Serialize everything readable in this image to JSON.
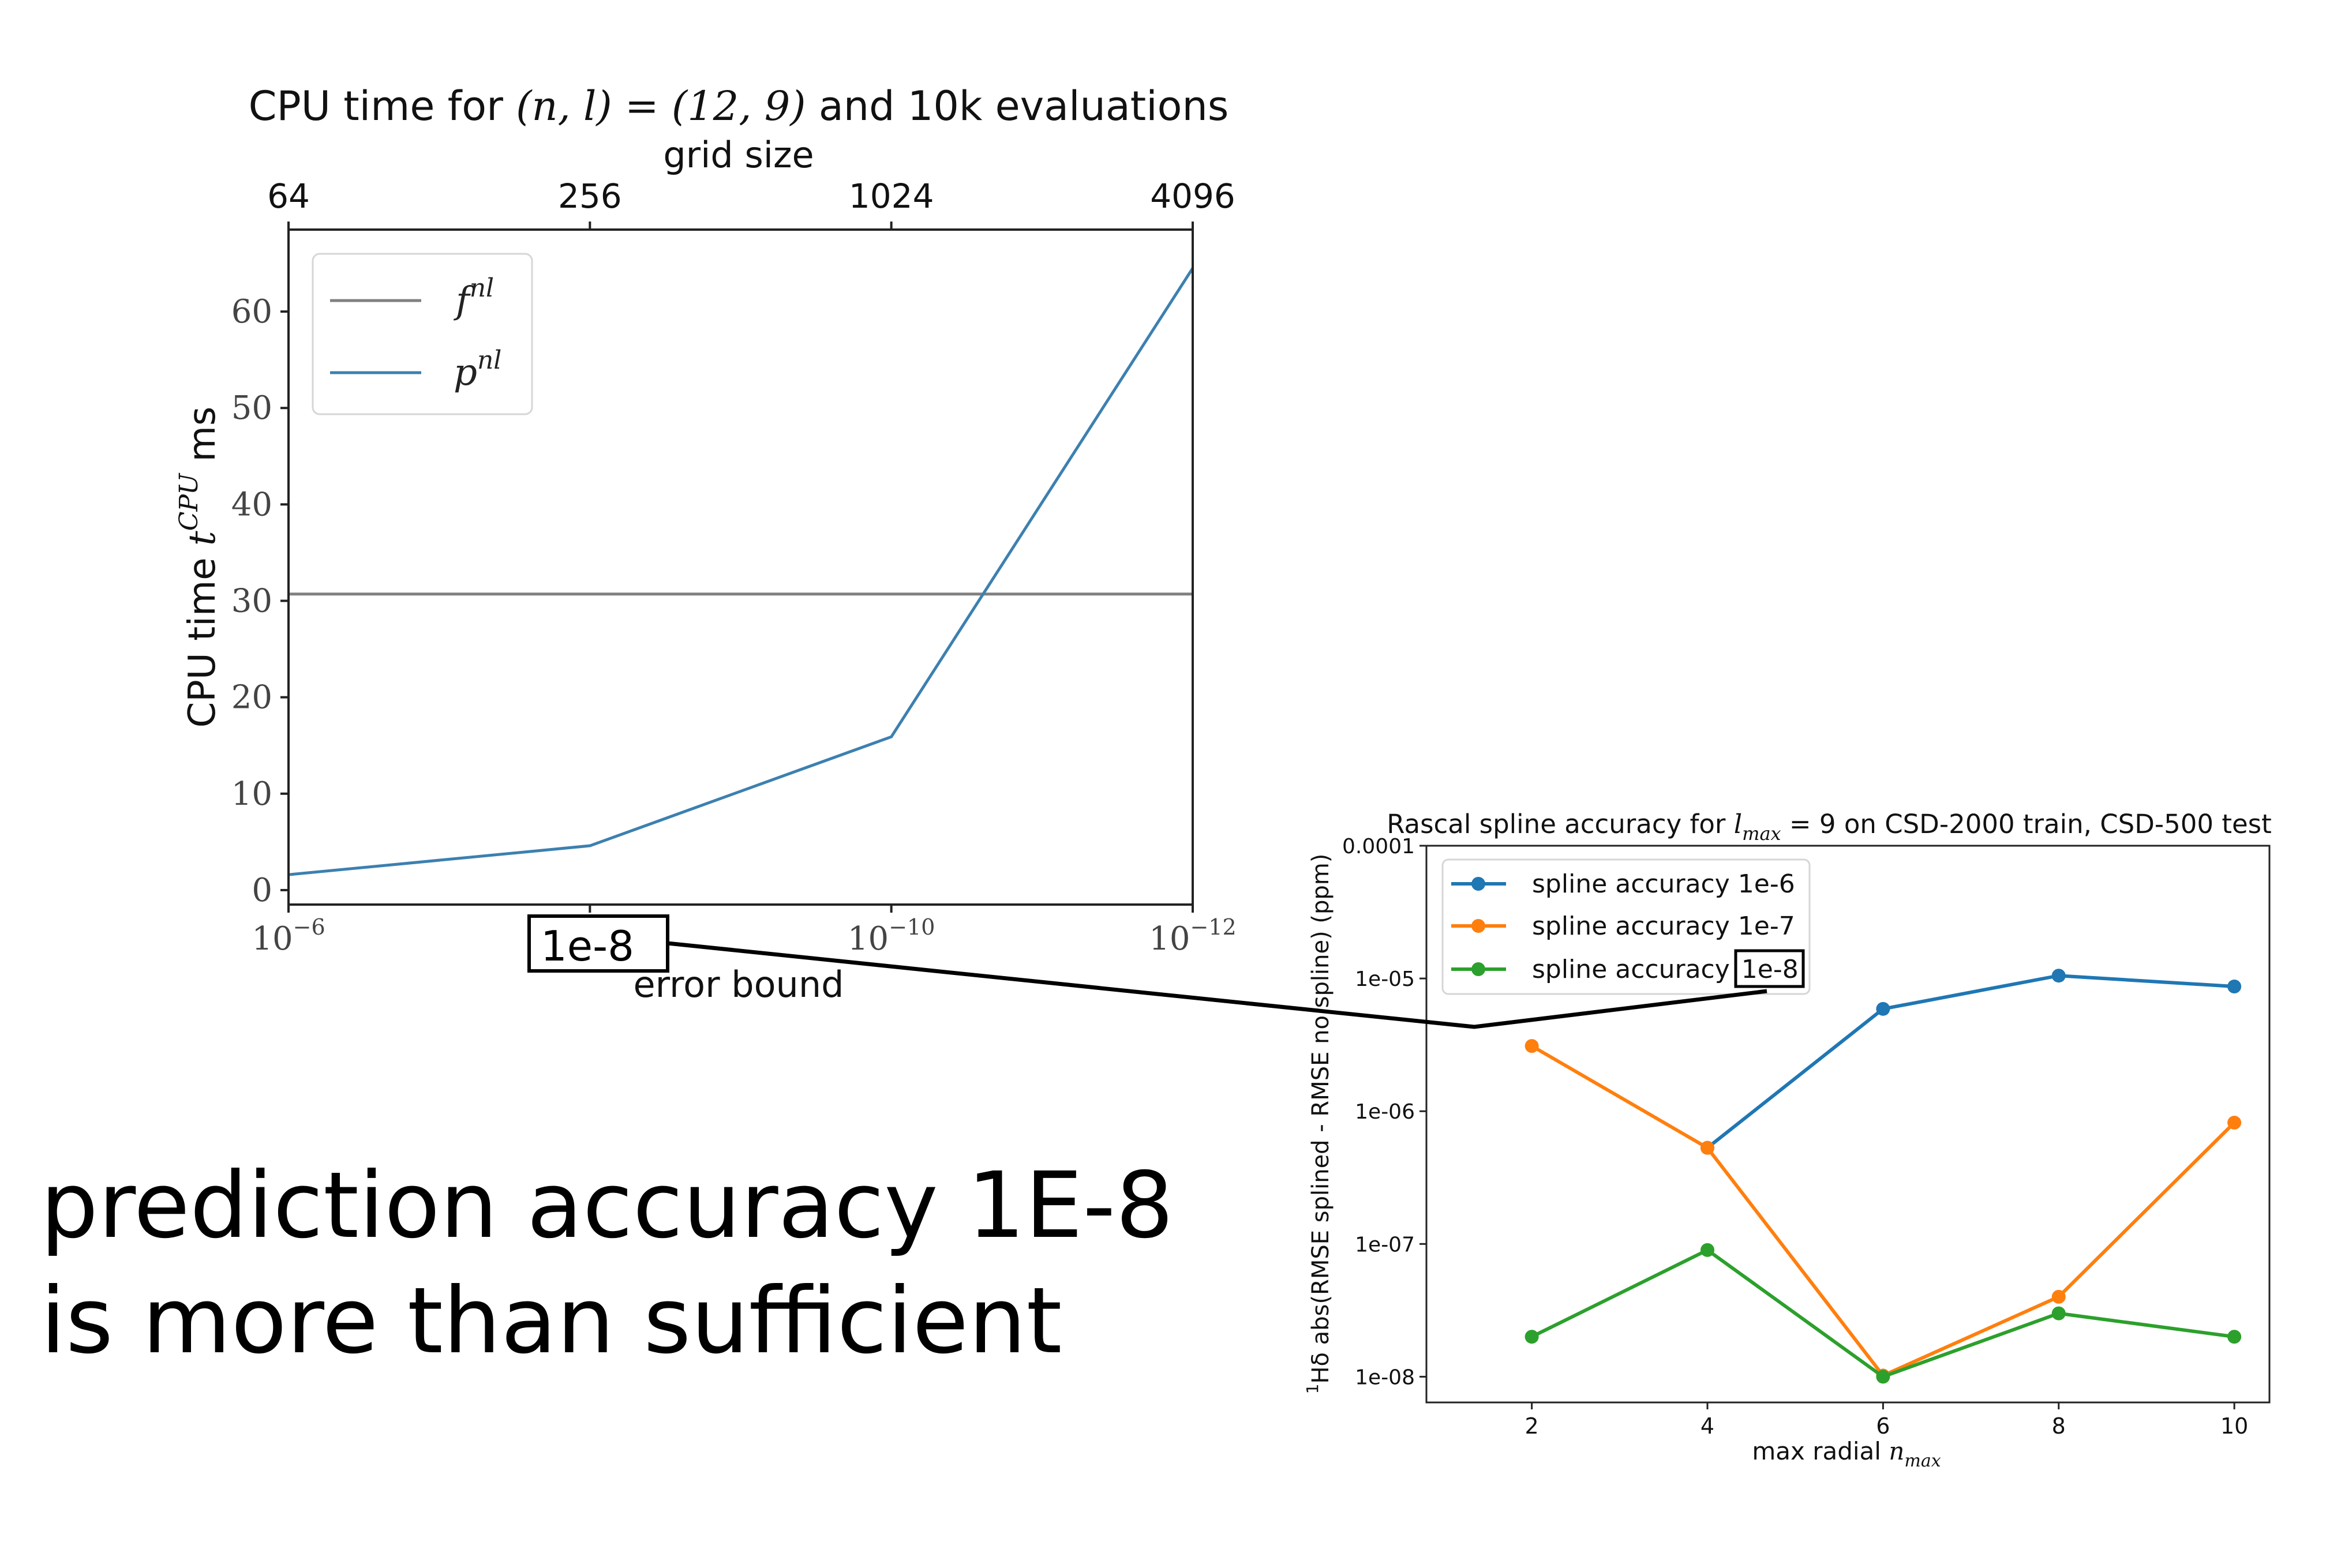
{
  "chart_data": [
    {
      "type": "line",
      "title": "CPU time for (n, l) = (12, 9) and 10k evaluations",
      "title_parts": {
        "pre": "CPU time for ",
        "math": "(n, l) = (12, 9)",
        "post": " and 10k evaluations"
      },
      "xlabel_top": "grid size",
      "x_top_ticks": [
        "64",
        "256",
        "1024",
        "4096"
      ],
      "xlabel": "error bound",
      "x": [
        "10^-6",
        "10^-8",
        "10^-10",
        "10^-12"
      ],
      "x_tick_labels": [
        {
          "base": "10",
          "exp": "−6"
        },
        {
          "base": "",
          "exp": ""
        },
        {
          "base": "10",
          "exp": "−10"
        },
        {
          "base": "10",
          "exp": "−12"
        }
      ],
      "highlighted_tick": "1e-8",
      "ylabel": "CPU time t^CPU ms",
      "ylabel_parts": {
        "pre": "CPU time ",
        "var": "t",
        "sup": "CPU",
        "post": " ms"
      },
      "y_ticks": [
        0,
        10,
        20,
        30,
        40,
        50,
        60
      ],
      "ylim": [
        -1.5,
        68.5
      ],
      "grid": false,
      "legend_position": "top-left",
      "series": [
        {
          "name": "f^nl",
          "label_base": "f",
          "label_sup": "nl",
          "color": "#808080",
          "values": [
            30.7,
            30.7,
            30.7,
            30.7
          ]
        },
        {
          "name": "p^nl",
          "label_base": "p",
          "label_sup": "nl",
          "color": "#3c80b0",
          "values": [
            1.6,
            4.6,
            15.9,
            64.5
          ]
        }
      ]
    },
    {
      "type": "line",
      "title": "Rascal spline accuracy for l_max = 9 on CSD-2000 train, CSD-500 test",
      "title_parts": {
        "pre": "Rascal spline accuracy for ",
        "var": "l",
        "sub": "max",
        "post": " = 9 on CSD-2000 train, CSD-500 test"
      },
      "xlabel": "max radial n_max",
      "xlabel_parts": {
        "pre": "max radial ",
        "var": "n",
        "sub": "max"
      },
      "ylabel": "1Hδ abs(RMSE splined - RMSE no spline) (ppm)",
      "ylabel_parts": {
        "sup": "1",
        "pre": "Hδ abs(RMSE splined - RMSE no spline) (ppm)"
      },
      "x": [
        2,
        4,
        6,
        8,
        10
      ],
      "y_scale": "log",
      "y_ticks": [
        "1e-08",
        "1e-07",
        "1e-06",
        "1e-05",
        "0.0001"
      ],
      "ylim": [
        6.4e-09,
        0.0001
      ],
      "xlim": [
        0.8,
        10.4
      ],
      "grid": false,
      "legend_position": "top-left",
      "highlighted_label": "1e-8",
      "series": [
        {
          "name": "spline accuracy 1e-6",
          "name_pre": "spline accuracy ",
          "name_val": "1e-6",
          "color": "#1f77b4",
          "values": [
            null,
            5.3e-07,
            5.9e-06,
            1.05e-05,
            8.7e-06
          ]
        },
        {
          "name": "spline accuracy 1e-7",
          "name_pre": "spline accuracy ",
          "name_val": "1e-7",
          "color": "#ff7f0e",
          "values": [
            3.1e-06,
            5.3e-07,
            1.02e-08,
            4e-08,
            8.2e-07
          ]
        },
        {
          "name": "spline accuracy 1e-8",
          "name_pre": "spline accuracy ",
          "name_val": "1e-8",
          "color": "#2ca02c",
          "values": [
            2e-08,
            9e-08,
            1e-08,
            3e-08,
            2e-08
          ]
        }
      ]
    }
  ],
  "message": {
    "line1": "prediction accuracy 1E-8",
    "line2": "is more than sufficient"
  }
}
